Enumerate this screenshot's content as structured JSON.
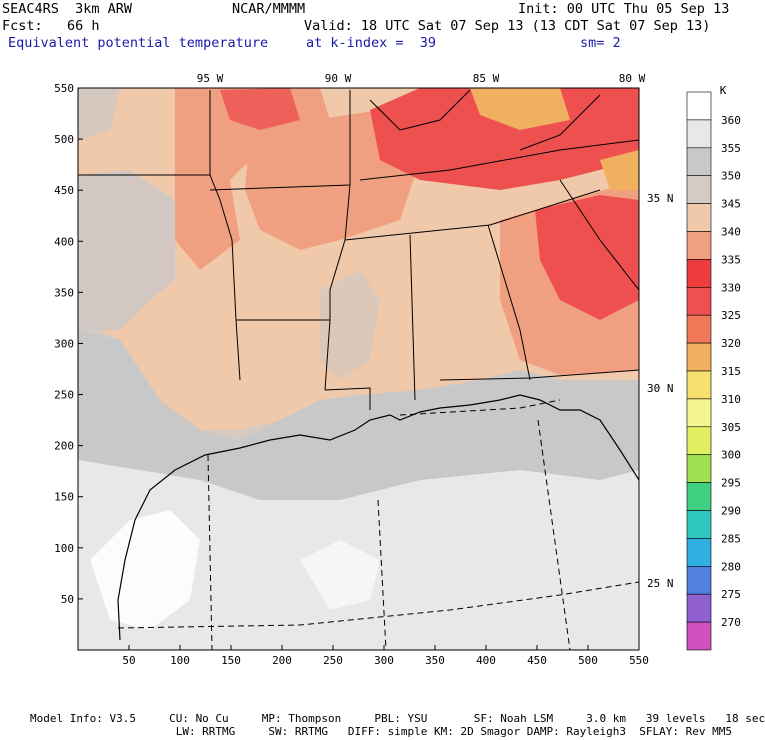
{
  "header": {
    "model_name": "SEAC4RS  3km ARW",
    "agency": "NCAR/MMMM",
    "init": "Init: 00 UTC Thu 05 Sep 13",
    "forecast": "Fcst:   66 h",
    "valid": "Valid: 18 UTC Sat 07 Sep 13 (13 CDT Sat 07 Sep 13)",
    "field_name": "Equivalent potential temperature",
    "level": "at k-index =  39",
    "smoothing": "sm= 2"
  },
  "map": {
    "lon_labels": [
      "95 W",
      "90 W",
      "85 W",
      "80 W"
    ],
    "lat_labels": [
      "35 N",
      "30 N",
      "25 N"
    ],
    "x_ticks": [
      "50",
      "100",
      "150",
      "200",
      "250",
      "300",
      "350",
      "400",
      "450",
      "500",
      "550"
    ],
    "y_ticks": [
      "550",
      "500",
      "450",
      "400",
      "350",
      "300",
      "250",
      "200",
      "150",
      "100",
      "50"
    ]
  },
  "colorbar": {
    "unit": "K",
    "levels": [
      {
        "label": "360",
        "color": "#ffffff"
      },
      {
        "label": "355",
        "color": "#e8e8e8"
      },
      {
        "label": "350",
        "color": "#c8c8c8"
      },
      {
        "label": "345",
        "color": "#d6cbc3"
      },
      {
        "label": "340",
        "color": "#f0c8aa"
      },
      {
        "label": "335",
        "color": "#f0a080"
      },
      {
        "label": "330",
        "color": "#ee3c3c"
      },
      {
        "label": "325",
        "color": "#ee5050"
      },
      {
        "label": "320",
        "color": "#f07858"
      },
      {
        "label": "315",
        "color": "#f0b060"
      },
      {
        "label": "310",
        "color": "#f5e070"
      },
      {
        "label": "305",
        "color": "#f6f690"
      },
      {
        "label": "300",
        "color": "#e0f060"
      },
      {
        "label": "295",
        "color": "#a0e050"
      },
      {
        "label": "290",
        "color": "#40d080"
      },
      {
        "label": "285",
        "color": "#30c8c0"
      },
      {
        "label": "280",
        "color": "#30b0e0"
      },
      {
        "label": "275",
        "color": "#5080e0"
      },
      {
        "label": "270",
        "color": "#9060d0"
      },
      {
        "label": "",
        "color": "#d050c0"
      }
    ]
  },
  "footer": {
    "line1": "Model Info: V3.5     CU: No Cu     MP: Thompson     PBL: YSU       SF: Noah LSM     3.0 km   39 levels   18 sec",
    "line2": "                      LW: RRTMG     SW: RRTMG   DIFF: simple KM: 2D Smagor DAMP: Rayleigh3  SFLAY: Rev MM5"
  }
}
